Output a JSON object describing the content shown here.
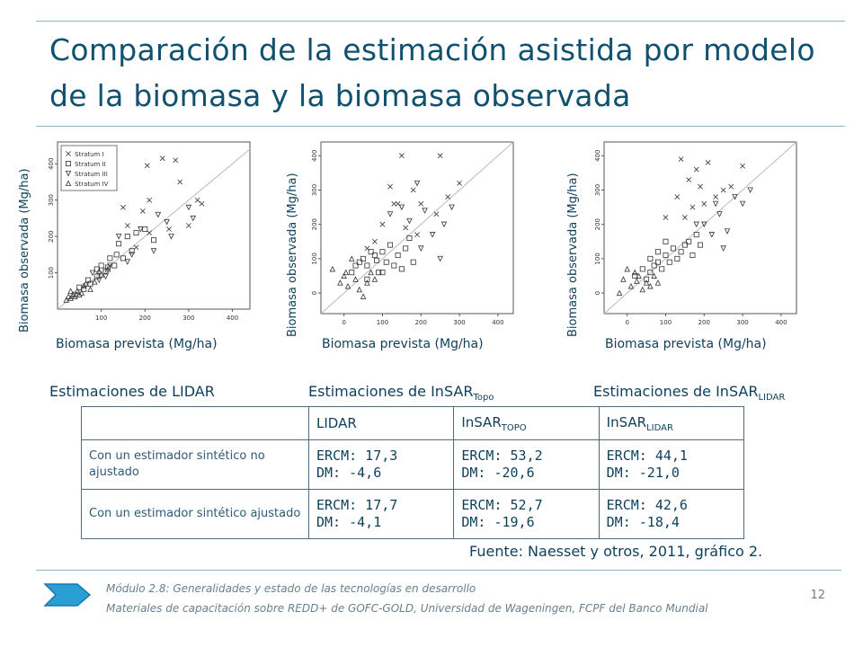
{
  "title": "Comparación de la estimación asistida por modelo de la biomasa y la biomasa observada",
  "chart_data": [
    {
      "type": "scatter",
      "ylabel": "Biomasa observada (Mg/ha)",
      "xlabel": "Biomasa prevista (Mg/ha)",
      "xticks": [
        100,
        200,
        300,
        400
      ],
      "yticks": [
        100,
        200,
        300,
        400
      ],
      "xlim": [
        0,
        440
      ],
      "ylim": [
        0,
        460
      ],
      "legend": {
        "placement": "top-left",
        "entries": [
          "Stratum I",
          "Stratum II",
          "Stratum III",
          "Stratum IV"
        ]
      },
      "series": [
        {
          "name": "Stratum I",
          "marker": "x",
          "points": [
            [
              205,
              395
            ],
            [
              240,
              415
            ],
            [
              300,
              230
            ],
            [
              255,
              220
            ],
            [
              210,
              300
            ],
            [
              280,
              350
            ],
            [
              330,
              290
            ],
            [
              180,
              170
            ],
            [
              160,
              230
            ],
            [
              270,
              410
            ],
            [
              320,
              300
            ],
            [
              195,
              270
            ],
            [
              150,
              280
            ],
            [
              210,
              210
            ]
          ]
        },
        {
          "name": "Stratum II",
          "marker": "square",
          "points": [
            [
              40,
              40
            ],
            [
              60,
              55
            ],
            [
              75,
              70
            ],
            [
              90,
              90
            ],
            [
              110,
              105
            ],
            [
              130,
              120
            ],
            [
              150,
              140
            ],
            [
              170,
              160
            ],
            [
              180,
              210
            ],
            [
              200,
              220
            ],
            [
              120,
              140
            ],
            [
              100,
              120
            ],
            [
              140,
              180
            ],
            [
              160,
              200
            ],
            [
              220,
              190
            ],
            [
              90,
              110
            ],
            [
              70,
              80
            ],
            [
              50,
              60
            ],
            [
              115,
              115
            ],
            [
              135,
              150
            ]
          ]
        },
        {
          "name": "Stratum III",
          "marker": "triangle-down",
          "points": [
            [
              120,
              120
            ],
            [
              140,
              200
            ],
            [
              190,
              220
            ],
            [
              230,
              260
            ],
            [
              260,
              200
            ],
            [
              220,
              160
            ],
            [
              310,
              250
            ],
            [
              170,
              150
            ],
            [
              95,
              80
            ],
            [
              80,
              100
            ],
            [
              250,
              240
            ],
            [
              300,
              280
            ],
            [
              160,
              130
            ],
            [
              110,
              90
            ]
          ]
        },
        {
          "name": "Stratum IV",
          "marker": "triangle",
          "points": [
            [
              20,
              25
            ],
            [
              30,
              30
            ],
            [
              45,
              50
            ],
            [
              55,
              45
            ],
            [
              65,
              70
            ],
            [
              85,
              75
            ],
            [
              100,
              95
            ],
            [
              30,
              50
            ],
            [
              40,
              35
            ],
            [
              60,
              65
            ],
            [
              75,
              55
            ],
            [
              95,
              105
            ],
            [
              115,
              110
            ],
            [
              50,
              40
            ],
            [
              35,
              40
            ],
            [
              25,
              35
            ]
          ]
        }
      ]
    },
    {
      "type": "scatter",
      "ylabel": "Biomasa observada (Mg/ha)",
      "xlabel": "Biomasa prevista (Mg/ha)",
      "xticks": [
        0,
        100,
        200,
        300,
        400
      ],
      "yticks": [
        0,
        100,
        200,
        300,
        400
      ],
      "xlim": [
        -60,
        440
      ],
      "ylim": [
        -60,
        440
      ],
      "series": [
        {
          "name": "",
          "marker": "x",
          "points": [
            [
              80,
              150
            ],
            [
              140,
              260
            ],
            [
              250,
              400
            ],
            [
              180,
              300
            ],
            [
              300,
              320
            ],
            [
              160,
              190
            ],
            [
              240,
              230
            ],
            [
              120,
              310
            ],
            [
              200,
              260
            ],
            [
              60,
              130
            ],
            [
              100,
              200
            ],
            [
              270,
              280
            ],
            [
              150,
              400
            ],
            [
              130,
              260
            ],
            [
              190,
              170
            ]
          ]
        },
        {
          "name": "",
          "marker": "square",
          "points": [
            [
              20,
              60
            ],
            [
              40,
              90
            ],
            [
              60,
              80
            ],
            [
              80,
              110
            ],
            [
              100,
              120
            ],
            [
              120,
              140
            ],
            [
              90,
              60
            ],
            [
              110,
              90
            ],
            [
              140,
              110
            ],
            [
              160,
              130
            ],
            [
              50,
              100
            ],
            [
              70,
              120
            ],
            [
              130,
              80
            ],
            [
              170,
              160
            ],
            [
              60,
              40
            ],
            [
              30,
              80
            ],
            [
              150,
              70
            ],
            [
              180,
              90
            ],
            [
              100,
              60
            ],
            [
              85,
              95
            ]
          ]
        },
        {
          "name": "",
          "marker": "triangle-down",
          "points": [
            [
              150,
              250
            ],
            [
              210,
              240
            ],
            [
              260,
              200
            ],
            [
              200,
              130
            ],
            [
              230,
              170
            ],
            [
              170,
              210
            ],
            [
              280,
              250
            ],
            [
              120,
              230
            ],
            [
              250,
              100
            ],
            [
              190,
              320
            ]
          ]
        },
        {
          "name": "",
          "marker": "triangle",
          "points": [
            [
              -30,
              70
            ],
            [
              0,
              50
            ],
            [
              10,
              20
            ],
            [
              30,
              40
            ],
            [
              40,
              10
            ],
            [
              60,
              30
            ],
            [
              20,
              100
            ],
            [
              70,
              60
            ],
            [
              50,
              -10
            ],
            [
              80,
              40
            ],
            [
              -10,
              30
            ],
            [
              5,
              60
            ]
          ]
        }
      ]
    },
    {
      "type": "scatter",
      "ylabel": "Biomasa observada (Mg/ha)",
      "xlabel": "Biomasa prevista (Mg/ha)",
      "xticks": [
        0,
        100,
        200,
        300,
        400
      ],
      "yticks": [
        0,
        100,
        200,
        300,
        400
      ],
      "xlim": [
        -60,
        440
      ],
      "ylim": [
        -60,
        440
      ],
      "series": [
        {
          "name": "",
          "marker": "x",
          "points": [
            [
              140,
              390
            ],
            [
              180,
              360
            ],
            [
              190,
              310
            ],
            [
              160,
              330
            ],
            [
              230,
              280
            ],
            [
              210,
              380
            ],
            [
              130,
              280
            ],
            [
              250,
              300
            ],
            [
              170,
              250
            ],
            [
              270,
              310
            ],
            [
              100,
              220
            ],
            [
              200,
              260
            ],
            [
              300,
              370
            ],
            [
              150,
              220
            ]
          ]
        },
        {
          "name": "",
          "marker": "square",
          "points": [
            [
              20,
              50
            ],
            [
              40,
              70
            ],
            [
              60,
              60
            ],
            [
              80,
              90
            ],
            [
              100,
              110
            ],
            [
              120,
              130
            ],
            [
              140,
              120
            ],
            [
              160,
              150
            ],
            [
              180,
              170
            ],
            [
              90,
              70
            ],
            [
              110,
              90
            ],
            [
              130,
              100
            ],
            [
              150,
              140
            ],
            [
              70,
              80
            ],
            [
              50,
              40
            ],
            [
              170,
              110
            ],
            [
              190,
              140
            ],
            [
              100,
              150
            ],
            [
              80,
              120
            ],
            [
              60,
              100
            ]
          ]
        },
        {
          "name": "",
          "marker": "triangle-down",
          "points": [
            [
              200,
              200
            ],
            [
              240,
              230
            ],
            [
              260,
              180
            ],
            [
              280,
              280
            ],
            [
              220,
              170
            ],
            [
              300,
              260
            ],
            [
              180,
              200
            ],
            [
              250,
              130
            ],
            [
              320,
              300
            ],
            [
              230,
              260
            ]
          ]
        },
        {
          "name": "",
          "marker": "triangle",
          "points": [
            [
              -10,
              40
            ],
            [
              10,
              20
            ],
            [
              30,
              50
            ],
            [
              50,
              30
            ],
            [
              20,
              60
            ],
            [
              60,
              20
            ],
            [
              40,
              10
            ],
            [
              0,
              70
            ],
            [
              70,
              50
            ],
            [
              80,
              30
            ],
            [
              -20,
              0
            ],
            [
              25,
              35
            ]
          ]
        }
      ]
    }
  ],
  "captions": {
    "lidar": "Estimaciones de LIDAR",
    "insar_topo_main": "Estimaciones de InSAR",
    "insar_topo_sub": "Topo",
    "insar_lidar_main": "Estimaciones de InSAR",
    "insar_lidar_sub": "LIDAR"
  },
  "table": {
    "headers": [
      {
        "main": "",
        "sub": ""
      },
      {
        "main": "LIDAR",
        "sub": ""
      },
      {
        "main": "InSAR",
        "sub": "TOPO"
      },
      {
        "main": "InSAR",
        "sub": "LIDAR"
      }
    ],
    "rows": [
      {
        "label": "Con un estimador sintético no ajustado",
        "cells": [
          [
            "ERCM: 17,3",
            "DM: -4,6"
          ],
          [
            "ERCM: 53,2",
            "DM: -20,6"
          ],
          [
            "ERCM: 44,1",
            "DM: -21,0"
          ]
        ]
      },
      {
        "label": "Con un estimador sintético ajustado",
        "cells": [
          [
            "ERCM: 17,7",
            "DM: -4,1"
          ],
          [
            "ERCM: 52,7",
            "DM: -19,6"
          ],
          [
            "ERCM: 42,6",
            "DM: -18,4"
          ]
        ]
      }
    ]
  },
  "source": "Fuente: Naesset y otros, 2011, gráfico 2.",
  "footer": {
    "line1": "Módulo 2.8: Generalidades y estado de las tecnologías en desarrollo",
    "line2": "Materiales de capacitación sobre REDD+ de GOFC-GOLD,  Universidad de Wageningen, FCPF del Banco Mundial",
    "page": "12"
  },
  "colors": {
    "title": "#10516f",
    "rule": "#8fb3c8",
    "text": "#0d3f5c",
    "arrow": "#2a9fd6"
  }
}
